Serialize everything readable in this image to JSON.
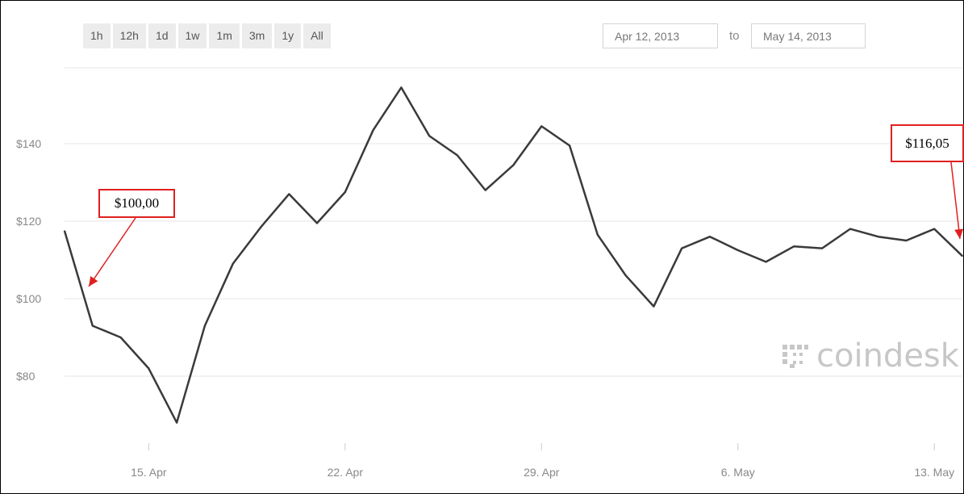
{
  "range_buttons": [
    "1h",
    "12h",
    "1d",
    "1w",
    "1m",
    "3m",
    "1y",
    "All"
  ],
  "date_range": {
    "from": "Apr 12, 2013",
    "separator": "to",
    "to": "May 14, 2013"
  },
  "watermark": {
    "brand": "coindesk",
    "icon": "coindesk-logo-icon"
  },
  "annotations": [
    {
      "label": "$100,00",
      "color": "#e02020"
    },
    {
      "label": "$116,05",
      "color": "#e02020"
    }
  ],
  "colors": {
    "line": "#3a3a3a",
    "grid": "#e6e6e6",
    "axis_text": "#888888",
    "callout": "#e02020"
  },
  "chart_data": {
    "type": "line",
    "x": [
      "2013-04-12",
      "2013-04-13",
      "2013-04-14",
      "2013-04-15",
      "2013-04-16",
      "2013-04-17",
      "2013-04-18",
      "2013-04-19",
      "2013-04-20",
      "2013-04-21",
      "2013-04-22",
      "2013-04-23",
      "2013-04-24",
      "2013-04-25",
      "2013-04-26",
      "2013-04-27",
      "2013-04-28",
      "2013-04-29",
      "2013-04-30",
      "2013-05-01",
      "2013-05-02",
      "2013-05-03",
      "2013-05-04",
      "2013-05-05",
      "2013-05-06",
      "2013-05-07",
      "2013-05-08",
      "2013-05-09",
      "2013-05-10",
      "2013-05-11",
      "2013-05-12",
      "2013-05-13",
      "2013-05-14"
    ],
    "series": [
      {
        "values": [
          117.5,
          93,
          90,
          82,
          68,
          93,
          109,
          118.5,
          127,
          119.5,
          127.5,
          143.5,
          154.5,
          142,
          137,
          128,
          134.5,
          144.5,
          139.5,
          116.5,
          106,
          98,
          113,
          116,
          112.5,
          109.5,
          113.5,
          113,
          118,
          116,
          115,
          118,
          111
        ]
      }
    ],
    "y_ticks": [
      80,
      100,
      120,
      140
    ],
    "y_tick_labels": [
      "$80",
      "$100",
      "$120",
      "$140"
    ],
    "x_tick_dates": [
      "2013-04-15",
      "2013-04-22",
      "2013-04-29",
      "2013-05-06",
      "2013-05-13"
    ],
    "x_tick_labels": [
      "15. Apr",
      "22. Apr",
      "29. Apr",
      "6. May",
      "13. May"
    ],
    "ylim": [
      60,
      160
    ],
    "grid": true,
    "legend": "none"
  }
}
